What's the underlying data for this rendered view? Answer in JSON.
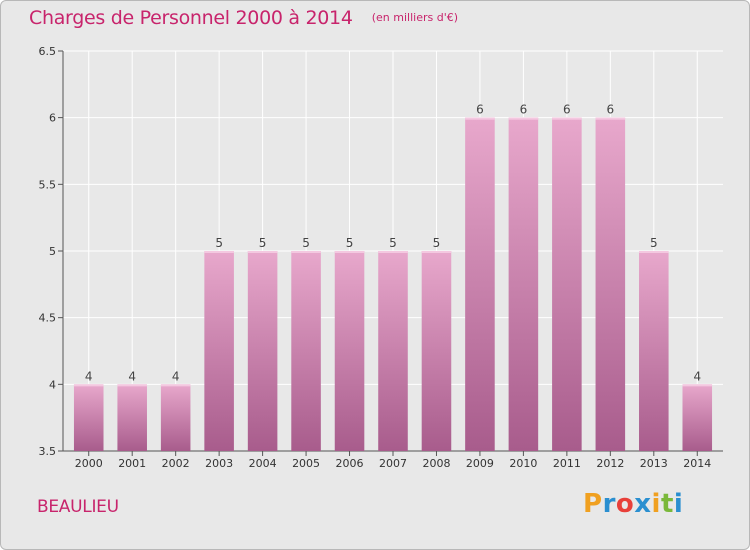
{
  "title": "Charges de Personnel 2000 à 2014",
  "subtitle": "(en milliers d'€)",
  "commune": "BEAULIEU",
  "brand": {
    "letters": [
      "P",
      "r",
      "o",
      "x",
      "i",
      "t",
      "i"
    ],
    "colors": [
      "#f0a020",
      "#2a8fd0",
      "#e8403a",
      "#2a8fd0",
      "#f0a020",
      "#7ab83a",
      "#2a8fd0"
    ]
  },
  "colors": {
    "title": "#c8246c",
    "bar_top": "#e8a8cc",
    "bar_bottom": "#a85c8c",
    "background": "#e8e8e8"
  },
  "chart_data": {
    "type": "bar",
    "categories": [
      "2000",
      "2001",
      "2002",
      "2003",
      "2004",
      "2005",
      "2006",
      "2007",
      "2008",
      "2009",
      "2010",
      "2011",
      "2012",
      "2013",
      "2014"
    ],
    "values": [
      4,
      4,
      4,
      5,
      5,
      5,
      5,
      5,
      5,
      6,
      6,
      6,
      6,
      5,
      4
    ],
    "value_labels": [
      "4",
      "4",
      "4",
      "5",
      "5",
      "5",
      "5",
      "5",
      "5",
      "6",
      "6",
      "6",
      "6",
      "5",
      "4"
    ],
    "ylim": [
      3.5,
      6.5
    ],
    "yticks": [
      "3.5",
      "4",
      "4.5",
      "5",
      "5.5",
      "6",
      "6.5"
    ],
    "grid": true
  }
}
